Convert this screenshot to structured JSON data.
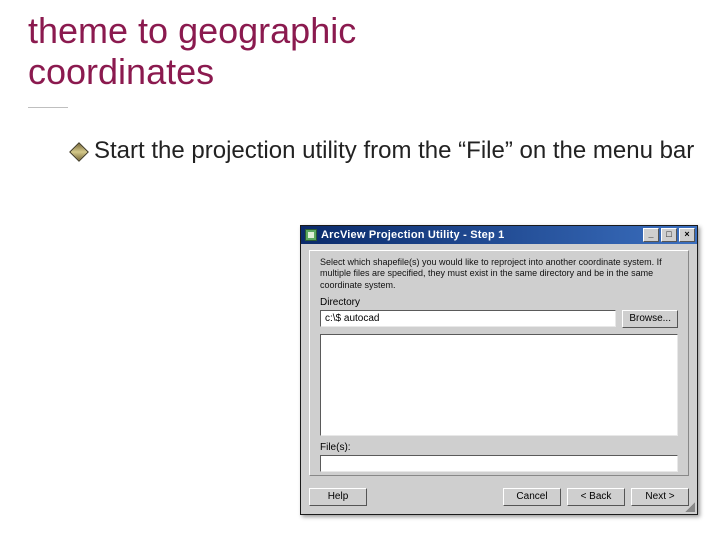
{
  "slide": {
    "title_line1": "theme to geographic",
    "title_line2": "coordinates",
    "bullet_text": "Start the projection utility from the “File” on the menu bar",
    "title_color": "#8b1a4f",
    "body_color": "#222222"
  },
  "dialog": {
    "title": "ArcView Projection Utility - Step 1",
    "instructions": "Select which shapefile(s) you would like to reproject into another coordinate system. If multiple files are specified, they must exist in the same directory and be in the same coordinate system.",
    "directory_label": "Directory",
    "directory_value": "c:\\$ autocad",
    "files_label": "File(s):",
    "browse_label": "Browse...",
    "help_label": "Help",
    "cancel_label": "Cancel",
    "back_label": "< Back",
    "next_label": "Next >",
    "min_label": "_",
    "max_label": "□",
    "close_label": "×",
    "colors": {
      "panel": "#cfcfcf",
      "titlebar_start": "#0a2a6a",
      "titlebar_end": "#3b6fbf",
      "input_bg": "#ffffff"
    }
  }
}
